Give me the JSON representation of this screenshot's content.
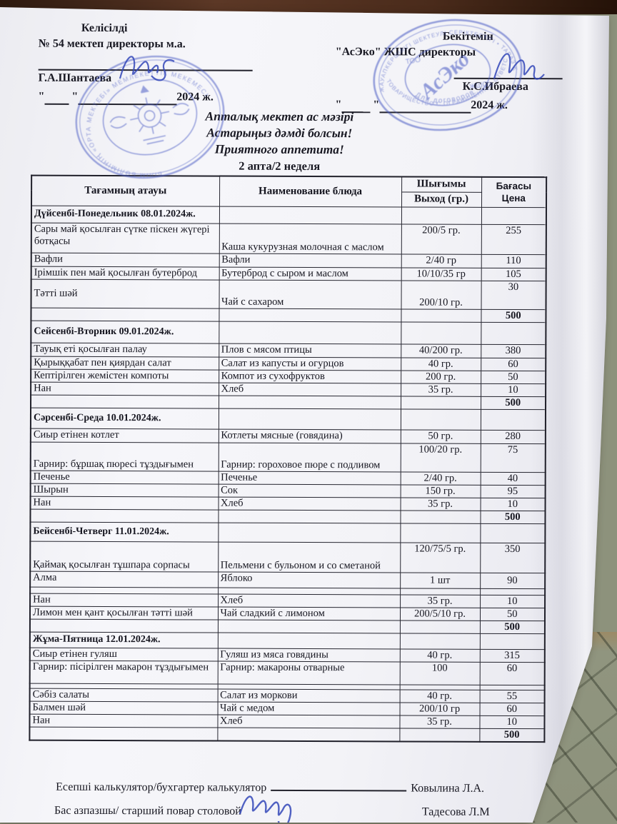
{
  "approvals": {
    "left": {
      "title": "Келісілді",
      "org": "№ 54 мектеп директоры м.а.",
      "name": "Г.А.Шантаева",
      "quote": "\"",
      "year": "2024 ж."
    },
    "right": {
      "title": "Бекітемін",
      "org": "\"АсЭко\" ЖШС  директоры",
      "name": "К.С.Ибраева",
      "quote": "\"",
      "year": "2024 ж."
    }
  },
  "title": {
    "line1": "Апталық мектеп ас мәзірі",
    "line2": "Астарыңыз дәмді болсын!",
    "line3": "Приятного аппетита!",
    "week": "2 апта/2 неделя"
  },
  "table": {
    "header": {
      "col1": "Тағамның атауы",
      "col2": "Наименование блюда",
      "col3_top": "Шығымы",
      "col3_bottom": "Выход (гр.)",
      "col4_top": "Бағасы",
      "col4_bottom": "Цена"
    },
    "days": [
      {
        "title": "Дүйсенбі-Понедельник 08.01.2024ж.",
        "rows": [
          {
            "kk": "Сары май қосылған сүтке піскен жүгері ботқасы",
            "ru": "Каша кукурузная молочная с маслом",
            "out": "200/5 гр.",
            "price": "255"
          },
          {
            "kk": "Вафли",
            "ru": "Вафли",
            "out": "2/40 гр",
            "price": "110"
          },
          {
            "kk": "Ірімшік пен май қосылған бутерброд",
            "ru": "Бутерброд с сыром и маслом",
            "out": "10/10/35 гр",
            "price": "105"
          },
          {
            "kk": "Тәтті шәй",
            "ru": "Чай с сахаром",
            "out": "200/10 гр.",
            "price": "30"
          }
        ],
        "total": "500"
      },
      {
        "title": "Сейсенбі-Вторник 09.01.2024ж.",
        "rows": [
          {
            "kk": "Тауық еті қосылған палау",
            "ru": "Плов с мясом птицы",
            "out": "40/200 гр.",
            "price": "380"
          },
          {
            "kk": "Қырыққабат пен қиярдан салат",
            "ru": "Салат из капусты и огурцов",
            "out": "40 гр.",
            "price": "60"
          },
          {
            "kk": "Кептірілген жемістен компоты",
            "ru": "Компот из сухофруктов",
            "out": "200 гр.",
            "price": "50"
          },
          {
            "kk": "Нан",
            "ru": "Хлеб",
            "out": "35 гр.",
            "price": "10"
          }
        ],
        "total": "500"
      },
      {
        "title": "Сәрсенбі-Среда 10.01.2024ж.",
        "rows": [
          {
            "kk": "Сиыр етінен котлет",
            "ru": "Котлеты мясные (говядина)",
            "out": "50 гр.",
            "price": "280"
          },
          {
            "kk": "Гарнир: бұршақ пюресі тұздығымен",
            "ru": "Гарнир: гороховое пюре с подливом",
            "out": "100/20 гр.",
            "price": "75"
          },
          {
            "kk": "Печенье",
            "ru": "Печенье",
            "out": "2/40 гр.",
            "price": "40"
          },
          {
            "kk": "Шырын",
            "ru": "Сок",
            "out": "150 гр.",
            "price": "95"
          },
          {
            "kk": "Нан",
            "ru": "Хлеб",
            "out": "35 гр.",
            "price": "10"
          }
        ],
        "total": "500"
      },
      {
        "title": "Бейсенбі-Четверг 11.01.2024ж.",
        "rows": [
          {
            "kk": "Қаймақ қосылған тұшпара сорпасы",
            "ru": "Пельмени с бульоном и со сметаной",
            "out": "120/75/5 гр.",
            "price": "350"
          },
          {
            "kk": "Алма",
            "ru": "Яблоко",
            "out": "1 шт",
            "price": "90"
          },
          {
            "kk": "Нан",
            "ru": "Хлеб",
            "out": "35 гр.",
            "price": "10"
          },
          {
            "kk": "Лимон мен қант қосылған тәтті шәй",
            "ru": "Чай сладкий с лимоном",
            "out": "200/5/10 гр.",
            "price": "50"
          }
        ],
        "total": "500"
      },
      {
        "title": "Жұма-Пятница 12.01.2024ж.",
        "rows": [
          {
            "kk": "Сиыр етінен гуляш",
            "ru": "Гуляш из мяса говядины",
            "out": "40 гр.",
            "price": "315"
          },
          {
            "kk": "Гарнир: пісірілген макарон тұздығымен",
            "ru": "Гарнир: макароны отварные",
            "out": "100",
            "price": "60"
          },
          {
            "kk": "Сәбіз салаты",
            "ru": "Салат из моркови",
            "out": "40 гр.",
            "price": "55"
          },
          {
            "kk": "Балмен шәй",
            "ru": "Чай с медом",
            "out": "200/10 гр",
            "price": "60"
          },
          {
            "kk": "Нан",
            "ru": "Хлеб",
            "out": "35 гр.",
            "price": "10"
          }
        ],
        "total": "500"
      }
    ]
  },
  "footer": {
    "accountant_label": "Есепші калькулятор/бухгартер калькулятор",
    "accountant_name": "Ковылина Л.А.",
    "chef_label": "Бас азпазшы/ старший повар столовой",
    "chef_name": "Тадесова Л.М"
  },
  "stamps": {
    "school": {
      "ring_text": "БІЛІМ БӨЛІМІНІҢ  «ОРТА МЕКТЕБІ»  МЕМЛЕКЕТТІК МЕКЕМЕСІ"
    },
    "aseco": {
      "ring_top": "ЖАУАПКЕРШІЛІГІ ШЕКТЕУЛІ СЕРІКТЕСТІГІ • ТАРАЗ ҚАЛАСЫ",
      "ring_bottom": "ТОВАРИЩЕСТВО С ОГРАНИЧЕННОЙ ОТВЕТСТВЕННОСТЬЮ",
      "left_label": "ТОО",
      "center_script": "АсЭко",
      "right_label": "ЖШС",
      "bottom_label": "Для договоров"
    }
  },
  "colors": {
    "stamp_blue": "#4456c2",
    "signature_blue": "#3247b8",
    "ink": "#181822"
  }
}
